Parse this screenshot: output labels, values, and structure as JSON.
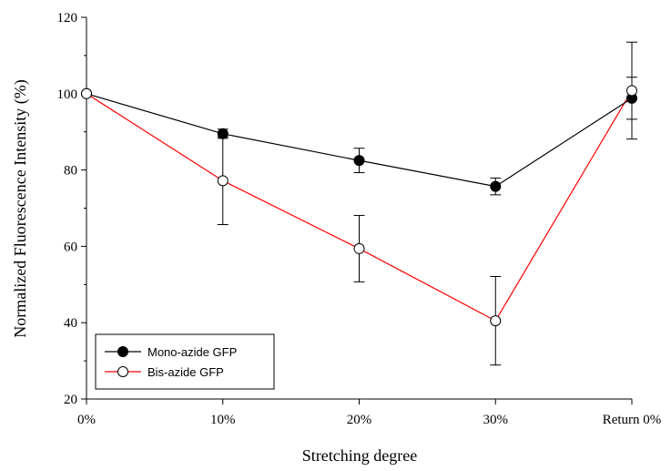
{
  "chart_data": {
    "type": "line",
    "xlabel": "Stretching degree",
    "ylabel": "Normalized Fluorescence Intensity (%)",
    "categories": [
      "0%",
      "10%",
      "20%",
      "30%",
      "Return 0%"
    ],
    "ylim": [
      20,
      120
    ],
    "yticks": [
      20,
      40,
      60,
      80,
      100,
      120
    ],
    "grid": false,
    "legend_position": "bottom-left",
    "series": [
      {
        "name": "Mono-azide GFP",
        "values": [
          100,
          89.5,
          82.5,
          75.7,
          98.8
        ],
        "error": [
          0,
          1.2,
          3.2,
          2.2,
          5.5
        ],
        "marker": "filled-circle",
        "color": "#000000"
      },
      {
        "name": "Bis-azide GFP",
        "values": [
          100,
          77.2,
          59.4,
          40.5,
          100.8
        ],
        "error": [
          0,
          11.5,
          8.7,
          11.6,
          12.7
        ],
        "marker": "open-circle",
        "color": "#ff0000"
      }
    ]
  }
}
